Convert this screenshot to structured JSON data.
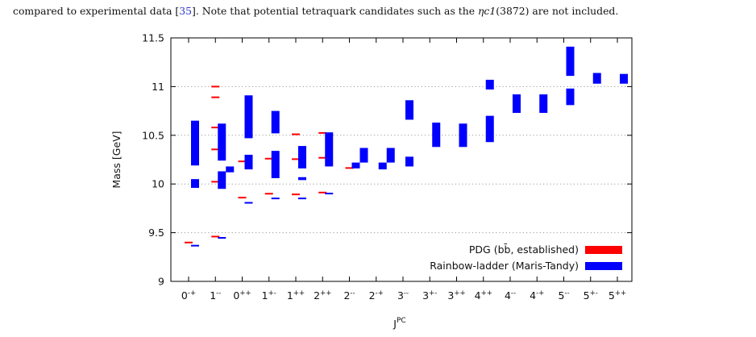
{
  "caption": {
    "text_before_ref": "compared to experimental data [",
    "ref": "35",
    "text_after_ref": "]. Note that potential tetraquark candidates such as the ",
    "symbol": "ηc1",
    "text_tail": "(3872) are not included."
  },
  "chart_data": {
    "type": "bar",
    "xlabel": "J",
    "xlabel_sup": "PC",
    "ylabel": "Mass [GeV]",
    "ylim": [
      9,
      11.5
    ],
    "yticks": [
      "9",
      "9.5",
      "10",
      "10.5",
      "11",
      "11.5"
    ],
    "ytick_values": [
      9,
      9.5,
      10,
      10.5,
      11,
      11.5
    ],
    "grid": "horizontal dotted",
    "legend_position": "bottom-right",
    "categories": [
      {
        "base": "0",
        "sup": "-+"
      },
      {
        "base": "1",
        "sup": "--"
      },
      {
        "base": "0",
        "sup": "++"
      },
      {
        "base": "1",
        "sup": "+-"
      },
      {
        "base": "1",
        "sup": "++"
      },
      {
        "base": "2",
        "sup": "++"
      },
      {
        "base": "2",
        "sup": "--"
      },
      {
        "base": "2",
        "sup": "-+"
      },
      {
        "base": "3",
        "sup": "--"
      },
      {
        "base": "3",
        "sup": "+-"
      },
      {
        "base": "3",
        "sup": "++"
      },
      {
        "base": "4",
        "sup": "++"
      },
      {
        "base": "4",
        "sup": "--"
      },
      {
        "base": "4",
        "sup": "-+"
      },
      {
        "base": "5",
        "sup": "--"
      },
      {
        "base": "5",
        "sup": "+-"
      },
      {
        "base": "5",
        "sup": "++"
      }
    ],
    "series": [
      {
        "name": "PDG (bb̄, established)",
        "color": "#ff0000",
        "kind": "mass-line",
        "points": [
          {
            "cat": 0,
            "y": 9.399
          },
          {
            "cat": 1,
            "y": 9.46
          },
          {
            "cat": 1,
            "y": 10.023
          },
          {
            "cat": 1,
            "y": 10.355
          },
          {
            "cat": 1,
            "y": 10.58
          },
          {
            "cat": 1,
            "y": 10.89
          },
          {
            "cat": 1,
            "y": 11.0
          },
          {
            "cat": 2,
            "y": 9.86
          },
          {
            "cat": 2,
            "y": 10.232
          },
          {
            "cat": 3,
            "y": 9.9
          },
          {
            "cat": 3,
            "y": 10.26
          },
          {
            "cat": 4,
            "y": 9.893
          },
          {
            "cat": 4,
            "y": 10.255
          },
          {
            "cat": 4,
            "y": 10.51
          },
          {
            "cat": 5,
            "y": 9.912
          },
          {
            "cat": 5,
            "y": 10.269
          },
          {
            "cat": 5,
            "y": 10.524
          },
          {
            "cat": 6,
            "y": 10.164
          }
        ]
      },
      {
        "name": "Rainbow-ladder (Maris-Tandy)",
        "color": "#0000ff",
        "kind": "range-box",
        "boxes": [
          {
            "cat": 0,
            "offset": 0,
            "lo": 9.36,
            "hi": 9.375
          },
          {
            "cat": 0,
            "offset": 0,
            "lo": 9.96,
            "hi": 10.05
          },
          {
            "cat": 0,
            "offset": 0,
            "lo": 10.19,
            "hi": 10.65
          },
          {
            "cat": 1,
            "offset": 0,
            "lo": 9.44,
            "hi": 9.455
          },
          {
            "cat": 1,
            "offset": 0,
            "lo": 9.95,
            "hi": 10.13
          },
          {
            "cat": 1,
            "offset": 0,
            "lo": 10.24,
            "hi": 10.62
          },
          {
            "cat": 1,
            "offset": 1,
            "lo": 10.12,
            "hi": 10.18
          },
          {
            "cat": 2,
            "offset": 0,
            "lo": 9.8,
            "hi": 9.815
          },
          {
            "cat": 2,
            "offset": 0,
            "lo": 10.15,
            "hi": 10.3
          },
          {
            "cat": 2,
            "offset": 0,
            "lo": 10.47,
            "hi": 10.91
          },
          {
            "cat": 3,
            "offset": 0,
            "lo": 9.845,
            "hi": 9.86
          },
          {
            "cat": 3,
            "offset": 0,
            "lo": 10.06,
            "hi": 10.34
          },
          {
            "cat": 3,
            "offset": 0,
            "lo": 10.52,
            "hi": 10.75
          },
          {
            "cat": 4,
            "offset": 0,
            "lo": 9.845,
            "hi": 9.86
          },
          {
            "cat": 4,
            "offset": 0,
            "lo": 10.04,
            "hi": 10.07
          },
          {
            "cat": 4,
            "offset": 0,
            "lo": 10.16,
            "hi": 10.39
          },
          {
            "cat": 5,
            "offset": 0,
            "lo": 9.9,
            "hi": 9.91
          },
          {
            "cat": 5,
            "offset": 0,
            "lo": 10.18,
            "hi": 10.53
          },
          {
            "cat": 6,
            "offset": 0,
            "lo": 10.16,
            "hi": 10.22
          },
          {
            "cat": 6,
            "offset": 1,
            "lo": 10.22,
            "hi": 10.37
          },
          {
            "cat": 7,
            "offset": 0,
            "lo": 10.15,
            "hi": 10.22
          },
          {
            "cat": 7,
            "offset": 1,
            "lo": 10.22,
            "hi": 10.37
          },
          {
            "cat": 8,
            "offset": 0,
            "lo": 10.18,
            "hi": 10.28
          },
          {
            "cat": 8,
            "offset": 0,
            "lo": 10.66,
            "hi": 10.86
          },
          {
            "cat": 9,
            "offset": 0,
            "lo": 10.38,
            "hi": 10.63
          },
          {
            "cat": 10,
            "offset": 0,
            "lo": 10.38,
            "hi": 10.62
          },
          {
            "cat": 11,
            "offset": 0,
            "lo": 10.43,
            "hi": 10.7
          },
          {
            "cat": 11,
            "offset": 0,
            "lo": 10.97,
            "hi": 11.07
          },
          {
            "cat": 12,
            "offset": 0,
            "lo": 10.73,
            "hi": 10.92
          },
          {
            "cat": 13,
            "offset": 0,
            "lo": 10.73,
            "hi": 10.92
          },
          {
            "cat": 14,
            "offset": 0,
            "lo": 10.81,
            "hi": 10.98
          },
          {
            "cat": 14,
            "offset": 0,
            "lo": 11.11,
            "hi": 11.41
          },
          {
            "cat": 15,
            "offset": 0,
            "lo": 11.03,
            "hi": 11.14
          },
          {
            "cat": 16,
            "offset": 0,
            "lo": 11.03,
            "hi": 11.13
          }
        ]
      }
    ]
  }
}
